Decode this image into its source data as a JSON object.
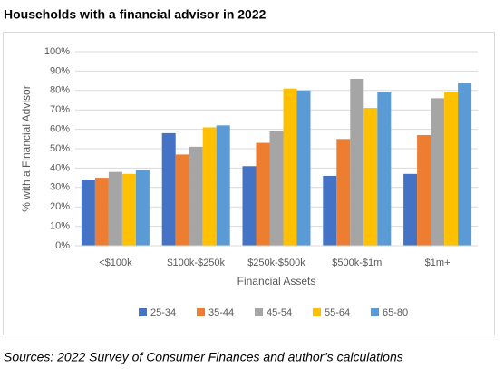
{
  "chart_data": {
    "type": "bar",
    "title": "Households with a financial advisor in 2022",
    "source": "Sources: 2022 Survey of Consumer Finances and author’s calculations",
    "x_label": "Financial Assets",
    "y_label": "% with a Financial Advisor",
    "categories": [
      "<$100k",
      "$100k-$250k",
      "$250k-$500k",
      "$500k-$1m",
      "$1m+"
    ],
    "series": [
      {
        "name": "25-34",
        "color": "#4472c4",
        "values": [
          34,
          58,
          41,
          36,
          37
        ]
      },
      {
        "name": "35-44",
        "color": "#ed7d31",
        "values": [
          35,
          47,
          53,
          55,
          57
        ]
      },
      {
        "name": "45-54",
        "color": "#a5a5a5",
        "values": [
          38,
          51,
          59,
          86,
          76
        ]
      },
      {
        "name": "55-64",
        "color": "#ffc000",
        "values": [
          37,
          61,
          81,
          71,
          79
        ]
      },
      {
        "name": "65-80",
        "color": "#5b9bd5",
        "values": [
          39,
          62,
          80,
          79,
          84
        ]
      }
    ],
    "ylim": [
      0,
      100
    ],
    "yticks": [
      {
        "value": 0,
        "label": "0%"
      },
      {
        "value": 10,
        "label": "10%"
      },
      {
        "value": 20,
        "label": "20%"
      },
      {
        "value": 30,
        "label": "30%"
      },
      {
        "value": 40,
        "label": "40%"
      },
      {
        "value": 50,
        "label": "50%"
      },
      {
        "value": 60,
        "label": "60%"
      },
      {
        "value": 70,
        "label": "70%"
      },
      {
        "value": 80,
        "label": "80%"
      },
      {
        "value": 90,
        "label": "90%"
      },
      {
        "value": 100,
        "label": "100%"
      }
    ],
    "grid": true,
    "legend": "bottom"
  }
}
